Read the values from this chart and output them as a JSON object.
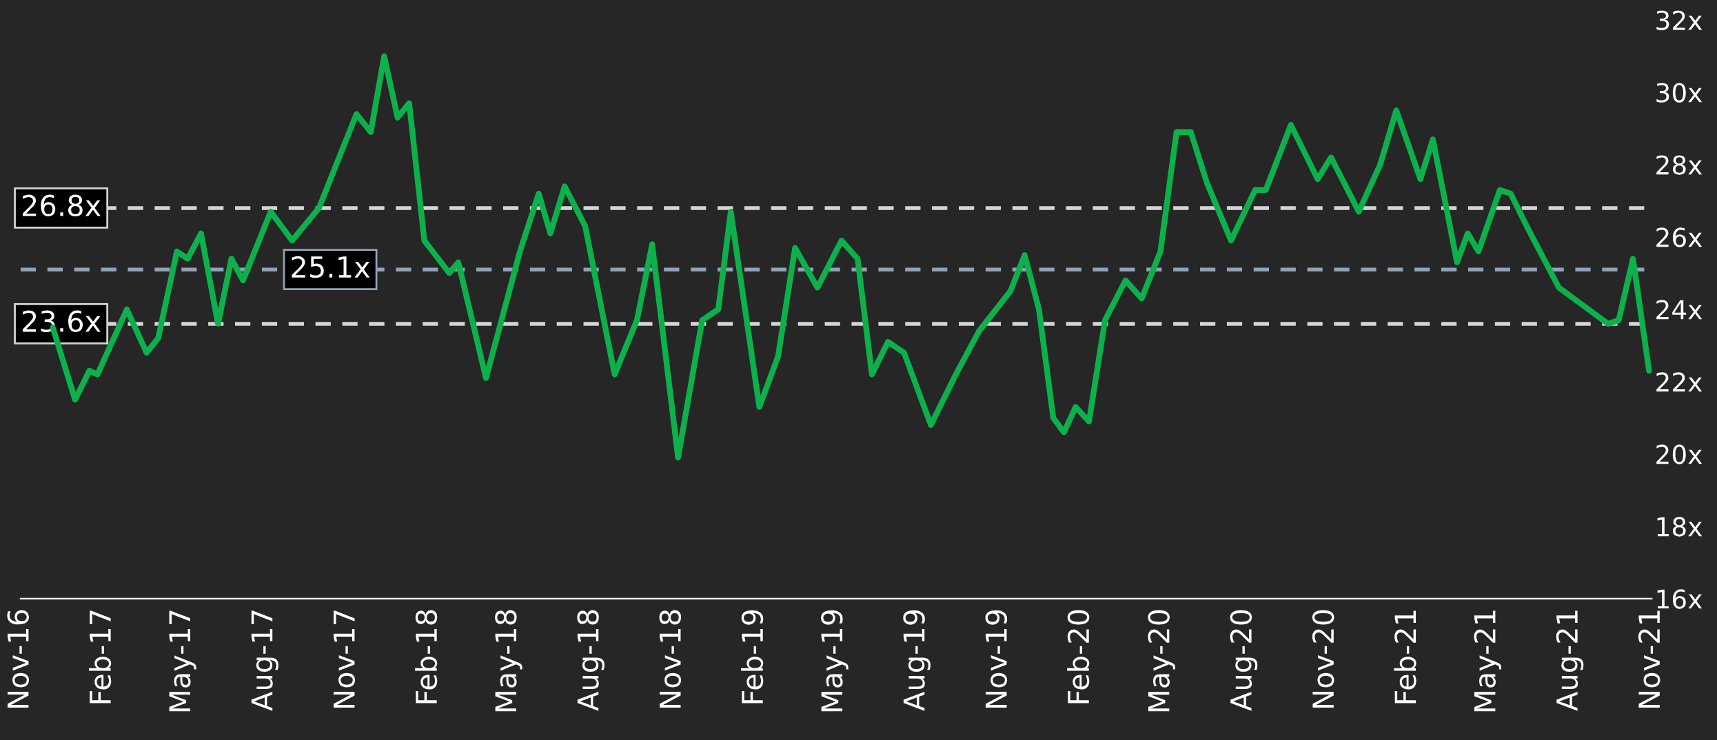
{
  "chart_data": {
    "type": "line",
    "x": [
      "2016-12-07",
      "2017-01-01",
      "2017-01-17",
      "2017-01-26",
      "2017-02-28",
      "2017-03-22",
      "2017-04-04",
      "2017-04-25",
      "2017-05-07",
      "2017-05-22",
      "2017-06-10",
      "2017-06-25",
      "2017-07-08",
      "2017-08-08",
      "2017-09-01",
      "2017-10-01",
      "2017-11-12",
      "2017-11-28",
      "2017-12-13",
      "2017-12-28",
      "2018-01-10",
      "2018-01-27",
      "2018-02-24",
      "2018-03-06",
      "2018-04-06",
      "2018-05-14",
      "2018-06-04",
      "2018-06-17",
      "2018-07-03",
      "2018-07-26",
      "2018-08-28",
      "2018-09-22",
      "2018-10-09",
      "2018-11-07",
      "2018-12-04",
      "2018-12-22",
      "2019-01-05",
      "2019-02-06",
      "2019-02-27",
      "2019-03-18",
      "2019-04-12",
      "2019-05-09",
      "2019-05-27",
      "2019-06-12",
      "2019-06-30",
      "2019-07-18",
      "2019-08-17",
      "2019-09-14",
      "2019-10-10",
      "2019-11-14",
      "2019-11-30",
      "2019-12-16",
      "2020-01-01",
      "2020-01-13",
      "2020-01-26",
      "2020-02-10",
      "2020-02-28",
      "2020-03-22",
      "2020-04-09",
      "2020-04-30",
      "2020-05-18",
      "2020-06-03",
      "2020-06-21",
      "2020-07-18",
      "2020-08-14",
      "2020-08-26",
      "2020-09-23",
      "2020-10-23",
      "2020-11-07",
      "2020-12-08",
      "2021-01-01",
      "2021-01-19",
      "2021-02-15",
      "2021-03-01",
      "2021-03-28",
      "2021-04-09",
      "2021-04-21",
      "2021-05-15",
      "2021-05-27",
      "2021-06-14",
      "2021-07-20",
      "2021-09-13",
      "2021-09-25",
      "2021-10-11",
      "2021-10-29"
    ],
    "series": [
      {
        "color": "#0db14b",
        "values": [
          23.5,
          21.5,
          22.3,
          22.2,
          24.0,
          22.8,
          23.2,
          25.6,
          25.4,
          26.1,
          23.6,
          25.4,
          24.8,
          26.7,
          25.9,
          26.8,
          29.4,
          28.9,
          31.0,
          29.3,
          29.7,
          25.9,
          25.0,
          25.3,
          22.1,
          25.6,
          27.2,
          26.1,
          27.4,
          26.3,
          22.2,
          23.7,
          25.8,
          19.9,
          23.7,
          24.0,
          26.7,
          21.3,
          22.7,
          25.7,
          24.6,
          25.9,
          25.4,
          22.2,
          23.1,
          22.8,
          20.8,
          22.2,
          23.4,
          24.5,
          25.5,
          24.0,
          21.0,
          20.6,
          21.3,
          20.9,
          23.7,
          24.8,
          24.3,
          25.6,
          28.9,
          28.9,
          27.5,
          25.9,
          27.3,
          27.3,
          29.1,
          27.6,
          28.2,
          26.7,
          28.0,
          29.5,
          27.6,
          28.7,
          25.3,
          26.1,
          25.6,
          27.3,
          27.2,
          26.3,
          24.6,
          23.6,
          23.7,
          25.4,
          22.3
        ]
      }
    ],
    "xlim": [
      "2016-11-01",
      "2021-11-01"
    ],
    "xticks": [
      {
        "value": "2016-11-01",
        "label": "Nov-16"
      },
      {
        "value": "2017-02-01",
        "label": "Feb-17"
      },
      {
        "value": "2017-05-01",
        "label": "May-17"
      },
      {
        "value": "2017-08-01",
        "label": "Aug-17"
      },
      {
        "value": "2017-11-01",
        "label": "Nov-17"
      },
      {
        "value": "2018-02-01",
        "label": "Feb-18"
      },
      {
        "value": "2018-05-01",
        "label": "May-18"
      },
      {
        "value": "2018-08-01",
        "label": "Aug-18"
      },
      {
        "value": "2018-11-01",
        "label": "Nov-18"
      },
      {
        "value": "2019-02-01",
        "label": "Feb-19"
      },
      {
        "value": "2019-05-01",
        "label": "May-19"
      },
      {
        "value": "2019-08-01",
        "label": "Aug-19"
      },
      {
        "value": "2019-11-01",
        "label": "Nov-19"
      },
      {
        "value": "2020-02-01",
        "label": "Feb-20"
      },
      {
        "value": "2020-05-01",
        "label": "May-20"
      },
      {
        "value": "2020-08-01",
        "label": "Aug-20"
      },
      {
        "value": "2020-11-01",
        "label": "Nov-20"
      },
      {
        "value": "2021-02-01",
        "label": "Feb-21"
      },
      {
        "value": "2021-05-01",
        "label": "May-21"
      },
      {
        "value": "2021-08-01",
        "label": "Aug-21"
      },
      {
        "value": "2021-11-01",
        "label": "Nov-21"
      }
    ],
    "ylim": [
      16,
      32
    ],
    "yticks": [
      {
        "value": 16,
        "label": "16x"
      },
      {
        "value": 18,
        "label": "18x"
      },
      {
        "value": 20,
        "label": "20x"
      },
      {
        "value": 22,
        "label": "22x"
      },
      {
        "value": 24,
        "label": "24x"
      },
      {
        "value": 26,
        "label": "26x"
      },
      {
        "value": 28,
        "label": "28x"
      },
      {
        "value": 30,
        "label": "30x"
      },
      {
        "value": 32,
        "label": "32x"
      }
    ],
    "ref_lines": [
      {
        "axis": "y",
        "value": 26.8,
        "label": "26.8x",
        "color": "#d4d4d4",
        "line_style": "dashed"
      },
      {
        "axis": "y",
        "value": 25.1,
        "label": "25.1x",
        "color": "#8fa3b8",
        "line_style": "dashed"
      },
      {
        "axis": "y",
        "value": 23.6,
        "label": "23.6x",
        "color": "#d4d4d4",
        "line_style": "dashed"
      }
    ],
    "grid": false,
    "legend": false
  }
}
